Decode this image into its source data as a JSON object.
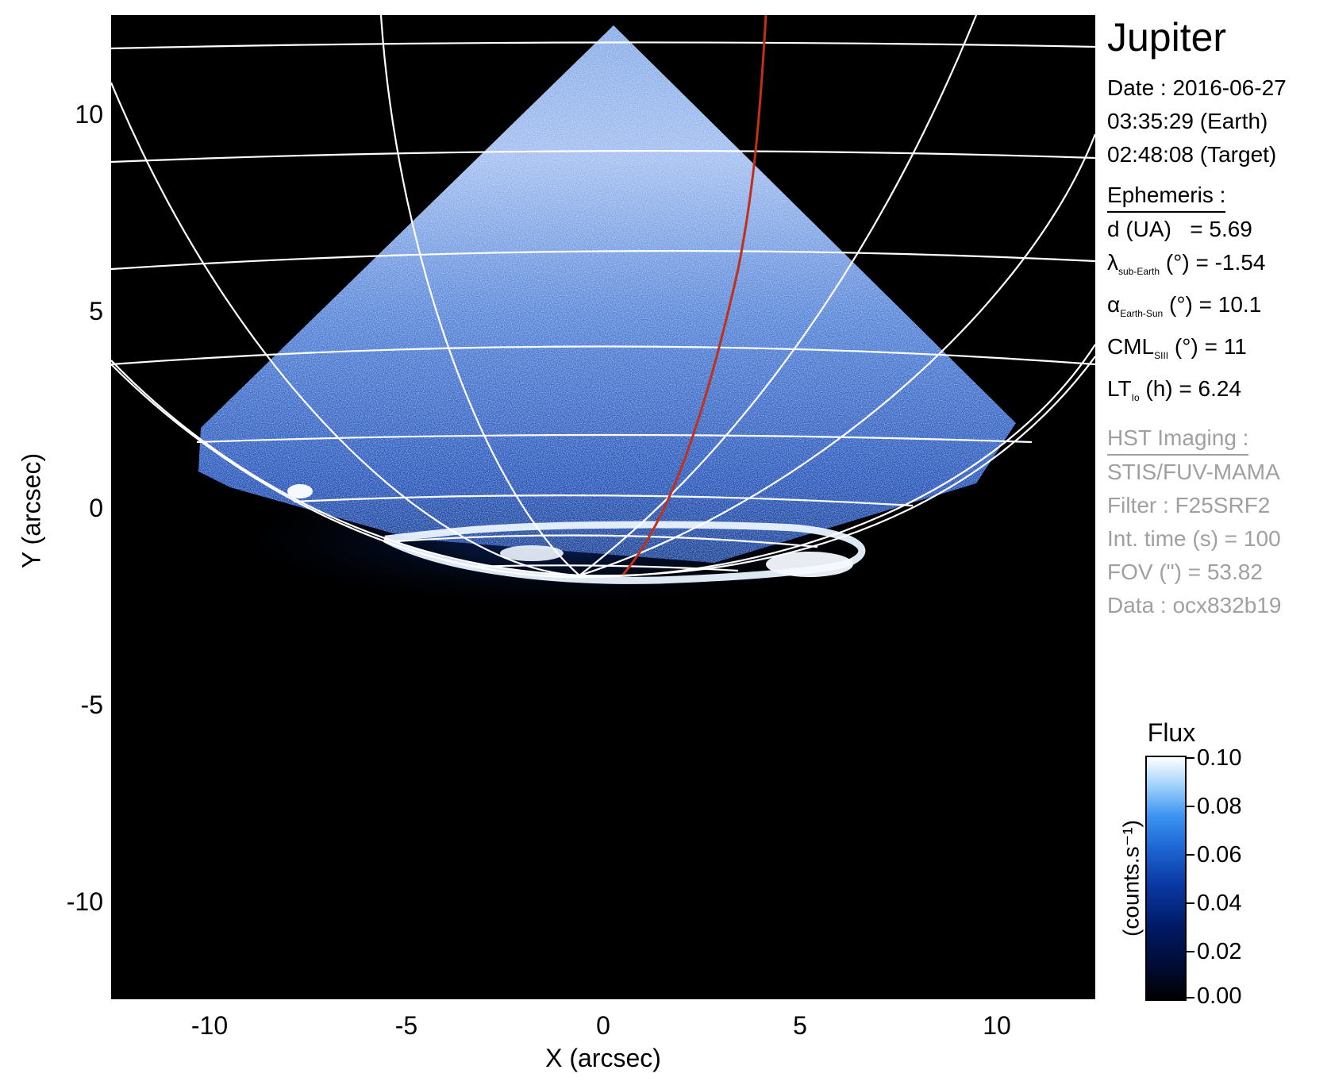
{
  "figure": {
    "target": "Jupiter",
    "date_line": "Date : 2016-06-27",
    "time_earth": "03:35:29 (Earth)",
    "time_target": "02:48:08 (Target)"
  },
  "ephemeris": {
    "heading": "Ephemeris :",
    "distance": {
      "label": "d (UA)",
      "value": "= 5.69"
    },
    "lat_sub_earth": {
      "symbol": "λ",
      "subscript": "sub-Earth",
      "unit": "(°)",
      "value": "= -1.54"
    },
    "phase_angle": {
      "symbol": "α",
      "subscript": "Earth-Sun",
      "unit": "(°)",
      "value": "= 10.1"
    },
    "cml": {
      "symbol": "CML",
      "subscript": "SIII",
      "unit": "(°)",
      "value": "= 11"
    },
    "local_time": {
      "symbol": "LT",
      "subscript": "Io",
      "unit": "(h)",
      "value": "= 6.24"
    }
  },
  "imaging": {
    "heading": "HST Imaging :",
    "instrument": "STIS/FUV-MAMA",
    "filter": "Filter : F25SRF2",
    "int_time": "Int. time (s) = 100",
    "fov": "FOV (\") = 53.82",
    "dataset": "Data : ocx832b19"
  },
  "axes": {
    "x_title": "X (arcsec)",
    "y_title": "Y (arcsec)",
    "x_ticks": [
      "-10",
      "-5",
      "0",
      "5",
      "10"
    ],
    "y_ticks": [
      "10",
      "5",
      "0",
      "-5",
      "-10"
    ],
    "xlim": [
      -12.5,
      12.5
    ],
    "ylim": [
      -12.5,
      12.5
    ]
  },
  "colorbar": {
    "title": "Flux",
    "units": "(counts.s⁻¹)",
    "ticks": [
      "0.10",
      "0.08",
      "0.06",
      "0.04",
      "0.02",
      "0.00"
    ],
    "range": [
      0.0,
      0.1
    ]
  },
  "colors": {
    "background": "#000000",
    "grid": "#ffffff",
    "io_footpath": "#c0301a",
    "emission_bright": "#e8f3ff",
    "emission_mid": "#2f6fd6"
  }
}
